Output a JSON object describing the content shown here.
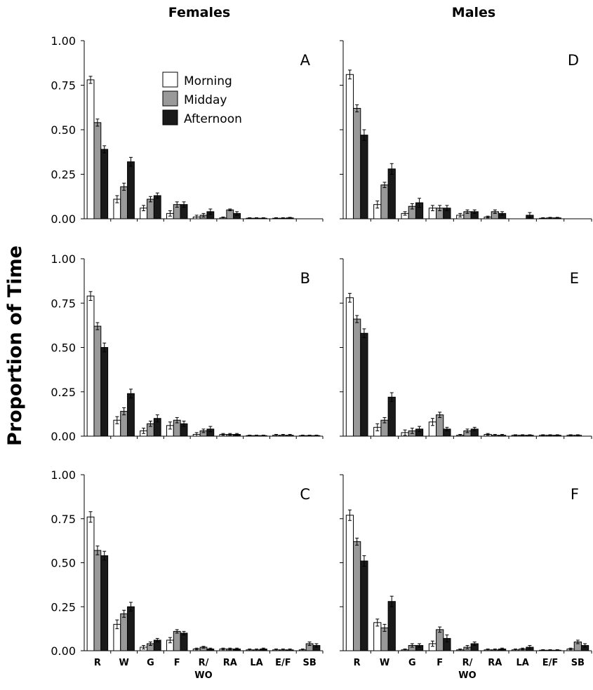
{
  "column_titles": {
    "left": "Females",
    "right": "Males"
  },
  "y_axis_label": "Proportion of Time",
  "legend": [
    "Morning",
    "Midday",
    "Afternoon"
  ],
  "colors": {
    "Morning": "#ffffff",
    "Midday": "#999999",
    "Afternoon": "#1a1a1a",
    "outline": "#000000"
  },
  "chart_data": [
    {
      "type": "bar",
      "panel": "A",
      "grid": false,
      "categories": [
        "R",
        "W",
        "G",
        "F",
        "R/",
        "RA",
        "LA",
        "E/F",
        "SB"
      ],
      "ylim": [
        0,
        1
      ],
      "yticks": [
        "0.00",
        "0.25",
        "0.50",
        "0.75",
        "1.00"
      ],
      "legend": "top-right",
      "series": [
        {
          "name": "Morning",
          "values": [
            0.78,
            0.11,
            0.06,
            0.03,
            0.01,
            0.005,
            0.003,
            0.003,
            0
          ],
          "errors": [
            0.02,
            0.02,
            0.015,
            0.015,
            0.01,
            0.005,
            0.003,
            0.003,
            0
          ]
        },
        {
          "name": "Midday",
          "values": [
            0.54,
            0.18,
            0.11,
            0.08,
            0.02,
            0.05,
            0.003,
            0.003,
            0
          ],
          "errors": [
            0.02,
            0.02,
            0.015,
            0.015,
            0.01,
            0.005,
            0.003,
            0.003,
            0
          ]
        },
        {
          "name": "Afternoon",
          "values": [
            0.39,
            0.32,
            0.13,
            0.08,
            0.04,
            0.03,
            0.003,
            0.005,
            0
          ],
          "errors": [
            0.02,
            0.025,
            0.015,
            0.015,
            0.015,
            0.01,
            0.003,
            0.003,
            0
          ]
        }
      ]
    },
    {
      "type": "bar",
      "panel": "B",
      "grid": false,
      "categories": [
        "R",
        "W",
        "G",
        "F",
        "R/",
        "RA",
        "LA",
        "E/F",
        "SB"
      ],
      "ylim": [
        0,
        1
      ],
      "yticks": [
        "0.00",
        "0.25",
        "0.50",
        "0.75",
        "1.00"
      ],
      "series": [
        {
          "name": "Morning",
          "values": [
            0.79,
            0.09,
            0.03,
            0.06,
            0.01,
            0.01,
            0.003,
            0.005,
            0.003
          ],
          "errors": [
            0.025,
            0.02,
            0.015,
            0.02,
            0.01,
            0.005,
            0.003,
            0.005,
            0.003
          ]
        },
        {
          "name": "Midday",
          "values": [
            0.62,
            0.14,
            0.07,
            0.09,
            0.03,
            0.01,
            0.003,
            0.005,
            0.003
          ],
          "errors": [
            0.02,
            0.02,
            0.015,
            0.015,
            0.01,
            0.005,
            0.003,
            0.005,
            0.003
          ]
        },
        {
          "name": "Afternoon",
          "values": [
            0.5,
            0.24,
            0.1,
            0.07,
            0.04,
            0.01,
            0.003,
            0.005,
            0.003
          ],
          "errors": [
            0.025,
            0.025,
            0.02,
            0.015,
            0.015,
            0.005,
            0.003,
            0.005,
            0.003
          ]
        }
      ]
    },
    {
      "type": "bar",
      "panel": "C",
      "grid": false,
      "categories": [
        "R",
        "W",
        "G",
        "F",
        "R/",
        "RA",
        "LA",
        "E/F",
        "SB"
      ],
      "ylim": [
        0,
        1
      ],
      "yticks": [
        "0.00",
        "0.25",
        "0.50",
        "0.75",
        "1.00"
      ],
      "series": [
        {
          "name": "Morning",
          "values": [
            0.76,
            0.15,
            0.02,
            0.06,
            0.01,
            0.01,
            0.005,
            0.005,
            0.005
          ],
          "errors": [
            0.03,
            0.025,
            0.01,
            0.015,
            0.005,
            0.005,
            0.005,
            0.005,
            0.005
          ]
        },
        {
          "name": "Midday",
          "values": [
            0.57,
            0.21,
            0.04,
            0.11,
            0.02,
            0.01,
            0.005,
            0.005,
            0.04
          ],
          "errors": [
            0.025,
            0.02,
            0.01,
            0.01,
            0.005,
            0.005,
            0.005,
            0.005,
            0.01
          ]
        },
        {
          "name": "Afternoon",
          "values": [
            0.54,
            0.25,
            0.06,
            0.1,
            0.01,
            0.01,
            0.01,
            0.005,
            0.03
          ],
          "errors": [
            0.025,
            0.025,
            0.01,
            0.01,
            0.005,
            0.005,
            0.005,
            0.005,
            0.01
          ]
        }
      ]
    },
    {
      "type": "bar",
      "panel": "D",
      "grid": false,
      "categories": [
        "R",
        "W",
        "G",
        "F",
        "R/",
        "RA",
        "LA",
        "E/F",
        "SB"
      ],
      "ylim": [
        0,
        1
      ],
      "yticks": [
        "0.00",
        "0.25",
        "0.50",
        "0.75",
        "1.00"
      ],
      "series": [
        {
          "name": "Morning",
          "values": [
            0.81,
            0.08,
            0.03,
            0.06,
            0.02,
            0.01,
            0,
            0.003,
            0
          ],
          "errors": [
            0.025,
            0.02,
            0.01,
            0.015,
            0.01,
            0.005,
            0,
            0.003,
            0
          ]
        },
        {
          "name": "Midday",
          "values": [
            0.62,
            0.19,
            0.07,
            0.06,
            0.04,
            0.04,
            0,
            0.005,
            0
          ],
          "errors": [
            0.02,
            0.015,
            0.015,
            0.015,
            0.01,
            0.01,
            0,
            0.003,
            0
          ]
        },
        {
          "name": "Afternoon",
          "values": [
            0.47,
            0.28,
            0.09,
            0.06,
            0.04,
            0.03,
            0.02,
            0.005,
            0
          ],
          "errors": [
            0.03,
            0.03,
            0.025,
            0.015,
            0.01,
            0.01,
            0.015,
            0.003,
            0
          ]
        }
      ]
    },
    {
      "type": "bar",
      "panel": "E",
      "grid": false,
      "categories": [
        "R",
        "W",
        "G",
        "F",
        "R/",
        "RA",
        "LA",
        "E/F",
        "SB"
      ],
      "ylim": [
        0,
        1
      ],
      "yticks": [
        "0.00",
        "0.25",
        "0.50",
        "0.75",
        "1.00"
      ],
      "series": [
        {
          "name": "Morning",
          "values": [
            0.78,
            0.05,
            0.02,
            0.08,
            0.005,
            0.01,
            0.005,
            0.005,
            0.005
          ],
          "errors": [
            0.025,
            0.02,
            0.015,
            0.02,
            0.005,
            0.005,
            0.003,
            0.003,
            0.003
          ]
        },
        {
          "name": "Midday",
          "values": [
            0.66,
            0.09,
            0.03,
            0.12,
            0.03,
            0.005,
            0.005,
            0.005,
            0.005
          ],
          "errors": [
            0.02,
            0.015,
            0.015,
            0.015,
            0.01,
            0.005,
            0.003,
            0.003,
            0.003
          ]
        },
        {
          "name": "Afternoon",
          "values": [
            0.58,
            0.22,
            0.04,
            0.04,
            0.04,
            0.005,
            0.005,
            0.005,
            0
          ],
          "errors": [
            0.025,
            0.025,
            0.015,
            0.01,
            0.01,
            0.005,
            0.003,
            0.003,
            0
          ]
        }
      ]
    },
    {
      "type": "bar",
      "panel": "F",
      "grid": false,
      "categories": [
        "R",
        "W",
        "G",
        "F",
        "R/",
        "RA",
        "LA",
        "E/F",
        "SB"
      ],
      "ylim": [
        0,
        1
      ],
      "yticks": [
        "0.00",
        "0.25",
        "0.50",
        "0.75",
        "1.00"
      ],
      "series": [
        {
          "name": "Morning",
          "values": [
            0.77,
            0.16,
            0.005,
            0.04,
            0.005,
            0.005,
            0.005,
            0.003,
            0.01
          ],
          "errors": [
            0.03,
            0.02,
            0.005,
            0.015,
            0.005,
            0.005,
            0.005,
            0.003,
            0.005
          ]
        },
        {
          "name": "Midday",
          "values": [
            0.62,
            0.13,
            0.03,
            0.12,
            0.02,
            0.005,
            0.01,
            0.003,
            0.05
          ],
          "errors": [
            0.02,
            0.02,
            0.01,
            0.015,
            0.01,
            0.005,
            0.005,
            0.003,
            0.01
          ]
        },
        {
          "name": "Afternoon",
          "values": [
            0.51,
            0.28,
            0.03,
            0.07,
            0.04,
            0.01,
            0.02,
            0.003,
            0.03
          ],
          "errors": [
            0.03,
            0.03,
            0.01,
            0.02,
            0.01,
            0.005,
            0.01,
            0.003,
            0.01
          ]
        }
      ]
    }
  ],
  "x_axis_sublabels": {
    "R/": "WO"
  }
}
